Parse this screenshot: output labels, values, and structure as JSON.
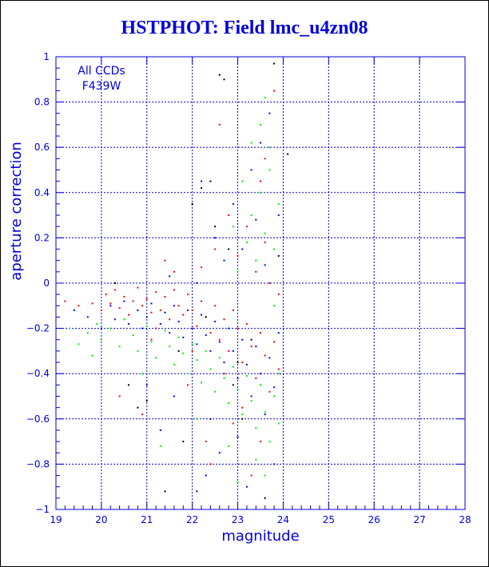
{
  "chart_data": {
    "type": "scatter",
    "title": "HSTPHOT: Field lmc_u4zn08",
    "xlabel": "magnitude",
    "ylabel": "aperture correction",
    "xlim": [
      19,
      28
    ],
    "ylim": [
      -1,
      1
    ],
    "x_ticks": [
      "19",
      "20",
      "21",
      "22",
      "23",
      "24",
      "25",
      "26",
      "27",
      "28"
    ],
    "y_ticks": [
      "−1",
      "−0.8",
      "−0.6",
      "−0.4",
      "−0.2",
      "0",
      "0.2",
      "0.4",
      "0.6",
      "0.8",
      "1"
    ],
    "grid": true,
    "annotations": [
      "All CCDs",
      "F439W"
    ],
    "colors": {
      "title": "#0000dd",
      "axes": "#0000dd",
      "grid": "#0000dd",
      "chip_1": "#0000ff",
      "chip_2": "#ff0000",
      "chip_3": "#00ee00",
      "chip_4": "#000000"
    },
    "series": [
      {
        "color": "#ff0000",
        "points": [
          [
            19.2,
            -0.08
          ],
          [
            19.5,
            -0.1
          ],
          [
            19.8,
            -0.09
          ],
          [
            20.0,
            -0.12
          ],
          [
            20.1,
            -0.05
          ],
          [
            20.2,
            -0.09
          ],
          [
            20.3,
            -0.03
          ],
          [
            20.4,
            -0.11
          ],
          [
            20.5,
            -0.06
          ],
          [
            20.6,
            -0.14
          ],
          [
            20.7,
            -0.08
          ],
          [
            20.8,
            -0.02
          ],
          [
            20.9,
            -0.1
          ],
          [
            21.0,
            -0.07
          ],
          [
            21.1,
            -0.13
          ],
          [
            21.2,
            -0.04
          ],
          [
            21.3,
            -0.12
          ],
          [
            21.4,
            -0.06
          ],
          [
            21.5,
            -0.16
          ],
          [
            21.6,
            -0.03
          ],
          [
            21.7,
            -0.1
          ],
          [
            21.8,
            -0.14
          ],
          [
            21.9,
            -0.05
          ],
          [
            22.0,
            -0.12
          ],
          [
            22.1,
            -0.19
          ],
          [
            22.2,
            -0.08
          ],
          [
            22.3,
            -0.15
          ],
          [
            22.4,
            -0.22
          ],
          [
            22.5,
            -0.1
          ],
          [
            22.6,
            -0.25
          ],
          [
            22.7,
            -0.16
          ],
          [
            22.8,
            -0.3
          ],
          [
            22.9,
            -0.12
          ],
          [
            23.0,
            -0.2
          ],
          [
            23.1,
            -0.35
          ],
          [
            23.2,
            -0.18
          ],
          [
            23.3,
            -0.28
          ],
          [
            23.4,
            -0.42
          ],
          [
            23.5,
            -0.22
          ],
          [
            23.6,
            -0.32
          ],
          [
            23.7,
            -0.48
          ],
          [
            23.8,
            -0.26
          ],
          [
            23.9,
            -0.38
          ],
          [
            20.4,
            -0.5
          ],
          [
            20.9,
            -0.58
          ],
          [
            21.1,
            -0.25
          ],
          [
            21.9,
            -0.45
          ],
          [
            22.3,
            -0.7
          ],
          [
            22.6,
            0.7
          ],
          [
            22.8,
            0.3
          ],
          [
            23.0,
            0.12
          ],
          [
            23.2,
            0.25
          ],
          [
            23.4,
            0.05
          ],
          [
            23.5,
            0.45
          ],
          [
            23.6,
            0.18
          ],
          [
            23.8,
            0.85
          ],
          [
            23.9,
            -0.05
          ],
          [
            22.2,
            0.07
          ],
          [
            22.5,
            0.15
          ],
          [
            21.6,
            0.05
          ],
          [
            21.4,
            0.1
          ],
          [
            23.1,
            -0.55
          ],
          [
            22.9,
            -0.62
          ],
          [
            23.3,
            -0.85
          ],
          [
            22.4,
            -0.8
          ],
          [
            23.7,
            0.0
          ],
          [
            23.5,
            -0.7
          ],
          [
            22.0,
            -0.3
          ],
          [
            21.2,
            -0.2
          ],
          [
            22.7,
            -0.4
          ],
          [
            23.6,
            0.55
          ]
        ]
      },
      {
        "color": "#0000ff",
        "points": [
          [
            19.4,
            -0.12
          ],
          [
            19.7,
            -0.15
          ],
          [
            20.0,
            -0.2
          ],
          [
            20.2,
            -0.1
          ],
          [
            20.3,
            -0.16
          ],
          [
            20.5,
            -0.08
          ],
          [
            20.6,
            -0.18
          ],
          [
            20.8,
            -0.12
          ],
          [
            20.9,
            -0.2
          ],
          [
            21.0,
            -0.15
          ],
          [
            21.1,
            -0.09
          ],
          [
            21.3,
            -0.18
          ],
          [
            21.4,
            -0.13
          ],
          [
            21.5,
            -0.22
          ],
          [
            21.6,
            -0.1
          ],
          [
            21.7,
            -0.17
          ],
          [
            21.8,
            -0.24
          ],
          [
            21.9,
            -0.12
          ],
          [
            22.0,
            -0.2
          ],
          [
            22.1,
            -0.27
          ],
          [
            22.2,
            -0.14
          ],
          [
            22.3,
            -0.23
          ],
          [
            22.4,
            -0.3
          ],
          [
            22.5,
            -0.17
          ],
          [
            22.6,
            -0.26
          ],
          [
            22.7,
            -0.35
          ],
          [
            22.8,
            -0.2
          ],
          [
            22.9,
            -0.3
          ],
          [
            23.0,
            -0.42
          ],
          [
            23.1,
            -0.25
          ],
          [
            23.2,
            -0.36
          ],
          [
            23.3,
            -0.5
          ],
          [
            23.4,
            -0.28
          ],
          [
            23.5,
            -0.4
          ],
          [
            23.6,
            -0.58
          ],
          [
            23.7,
            -0.33
          ],
          [
            23.8,
            -0.46
          ],
          [
            23.9,
            -0.22
          ],
          [
            21.0,
            -0.45
          ],
          [
            21.6,
            -0.5
          ],
          [
            22.2,
            0.45
          ],
          [
            22.5,
            0.2
          ],
          [
            22.7,
            0.1
          ],
          [
            22.9,
            0.35
          ],
          [
            23.1,
            0.15
          ],
          [
            23.3,
            0.5
          ],
          [
            23.4,
            0.28
          ],
          [
            23.6,
            0.08
          ],
          [
            23.7,
            0.75
          ],
          [
            23.9,
            0.3
          ],
          [
            22.1,
            0.0
          ],
          [
            21.5,
            0.03
          ],
          [
            22.4,
            -0.6
          ],
          [
            22.6,
            -0.75
          ],
          [
            23.0,
            -0.68
          ],
          [
            23.2,
            -0.9
          ],
          [
            23.8,
            -0.8
          ],
          [
            22.3,
            -0.85
          ],
          [
            21.3,
            -0.65
          ],
          [
            23.5,
            0.62
          ]
        ]
      },
      {
        "color": "#00ee00",
        "points": [
          [
            19.3,
            -0.2
          ],
          [
            19.5,
            -0.27
          ],
          [
            19.7,
            -0.22
          ],
          [
            19.9,
            -0.18
          ],
          [
            20.0,
            -0.25
          ],
          [
            20.2,
            -0.2
          ],
          [
            20.4,
            -0.28
          ],
          [
            20.5,
            -0.16
          ],
          [
            20.7,
            -0.23
          ],
          [
            20.8,
            -0.3
          ],
          [
            21.0,
            -0.19
          ],
          [
            21.1,
            -0.26
          ],
          [
            21.2,
            -0.33
          ],
          [
            21.4,
            -0.21
          ],
          [
            21.5,
            -0.28
          ],
          [
            21.6,
            -0.36
          ],
          [
            21.7,
            -0.24
          ],
          [
            21.8,
            -0.31
          ],
          [
            21.9,
            -0.4
          ],
          [
            22.0,
            -0.27
          ],
          [
            22.1,
            -0.34
          ],
          [
            22.2,
            -0.44
          ],
          [
            22.3,
            -0.3
          ],
          [
            22.4,
            -0.38
          ],
          [
            22.5,
            -0.48
          ],
          [
            22.6,
            -0.33
          ],
          [
            22.7,
            -0.42
          ],
          [
            22.8,
            -0.53
          ],
          [
            22.9,
            -0.37
          ],
          [
            23.0,
            -0.47
          ],
          [
            23.1,
            -0.58
          ],
          [
            23.2,
            -0.41
          ],
          [
            23.3,
            -0.52
          ],
          [
            23.4,
            -0.64
          ],
          [
            23.5,
            -0.45
          ],
          [
            23.6,
            -0.57
          ],
          [
            23.7,
            -0.7
          ],
          [
            23.8,
            -0.5
          ],
          [
            23.9,
            -0.62
          ],
          [
            23.0,
            0.05
          ],
          [
            23.2,
            0.18
          ],
          [
            23.3,
            0.3
          ],
          [
            23.4,
            0.1
          ],
          [
            23.5,
            0.4
          ],
          [
            23.6,
            0.22
          ],
          [
            23.7,
            0.5
          ],
          [
            23.8,
            0.15
          ],
          [
            23.9,
            0.35
          ],
          [
            23.5,
            0.7
          ],
          [
            23.7,
            0.6
          ],
          [
            23.3,
            0.62
          ],
          [
            23.6,
            0.82
          ],
          [
            23.1,
            0.45
          ],
          [
            22.9,
            0.25
          ],
          [
            23.8,
            -0.1
          ],
          [
            23.4,
            -0.78
          ],
          [
            23.0,
            -0.88
          ],
          [
            22.8,
            -0.72
          ],
          [
            23.6,
            -0.85
          ],
          [
            23.9,
            -0.4
          ],
          [
            21.3,
            -0.72
          ],
          [
            22.1,
            -0.6
          ],
          [
            19.8,
            -0.32
          ],
          [
            20.9,
            -0.4
          ]
        ]
      },
      {
        "color": "#000000",
        "points": [
          [
            20.3,
            0.0
          ],
          [
            20.6,
            -0.45
          ],
          [
            21.0,
            -0.52
          ],
          [
            21.4,
            -0.92
          ],
          [
            21.7,
            -0.3
          ],
          [
            22.0,
            0.35
          ],
          [
            22.2,
            0.42
          ],
          [
            22.4,
            0.45
          ],
          [
            22.5,
            0.25
          ],
          [
            22.6,
            0.92
          ],
          [
            22.7,
            0.9
          ],
          [
            22.9,
            -0.45
          ],
          [
            23.0,
            -0.35
          ],
          [
            23.1,
            -0.6
          ],
          [
            23.3,
            -0.25
          ],
          [
            23.8,
            0.97
          ],
          [
            24.1,
            0.57
          ],
          [
            23.9,
            0.12
          ],
          [
            22.3,
            -0.15
          ],
          [
            21.8,
            -0.7
          ],
          [
            20.8,
            -0.55
          ],
          [
            22.1,
            -0.92
          ],
          [
            23.6,
            -0.95
          ],
          [
            22.8,
            0.15
          ]
        ]
      }
    ]
  }
}
